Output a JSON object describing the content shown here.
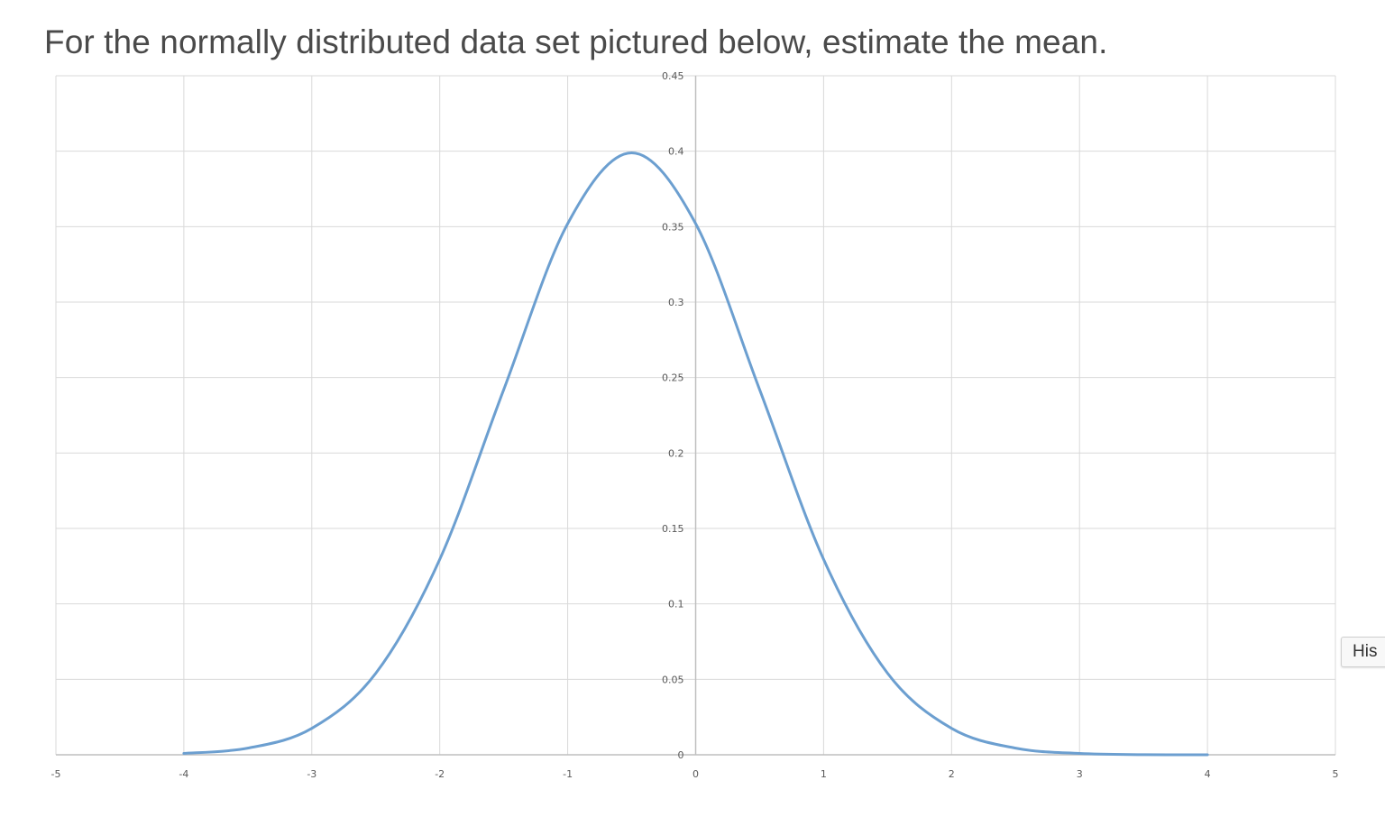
{
  "question": {
    "text": "For the normally distributed data set pictured below, estimate the mean."
  },
  "side_tab": {
    "label": "His"
  },
  "colors": {
    "curve": "#6c9fd0",
    "grid": "#d9d9d9",
    "axis": "#bfbfbf",
    "question_text": "#4a4a4a"
  },
  "chart_data": {
    "type": "line",
    "title": "",
    "xlabel": "",
    "ylabel": "",
    "xlim": [
      -5,
      5
    ],
    "ylim": [
      0,
      0.45
    ],
    "x_ticks": [
      "-5",
      "-4",
      "-3",
      "-2",
      "-1",
      "0",
      "1",
      "2",
      "3",
      "4",
      "5"
    ],
    "y_ticks": [
      "0",
      "0.05",
      "0.1",
      "0.15",
      "0.2",
      "0.25",
      "0.3",
      "0.35",
      "0.4",
      "0.45"
    ],
    "grid": true,
    "legend": "none",
    "series": [
      {
        "x": [
          -4,
          -3.5,
          -3,
          -2.5,
          -2,
          -1.5,
          -1,
          -0.5,
          0,
          0.5,
          1,
          1.5,
          2,
          2.5,
          3,
          3.5,
          4
        ],
        "y": [
          0.0009,
          0.0044,
          0.0175,
          0.054,
          0.1295,
          0.242,
          0.352,
          0.3989,
          0.352,
          0.242,
          0.1295,
          0.054,
          0.0175,
          0.0044,
          0.0009,
          0.0001,
          0.0
        ]
      }
    ]
  }
}
